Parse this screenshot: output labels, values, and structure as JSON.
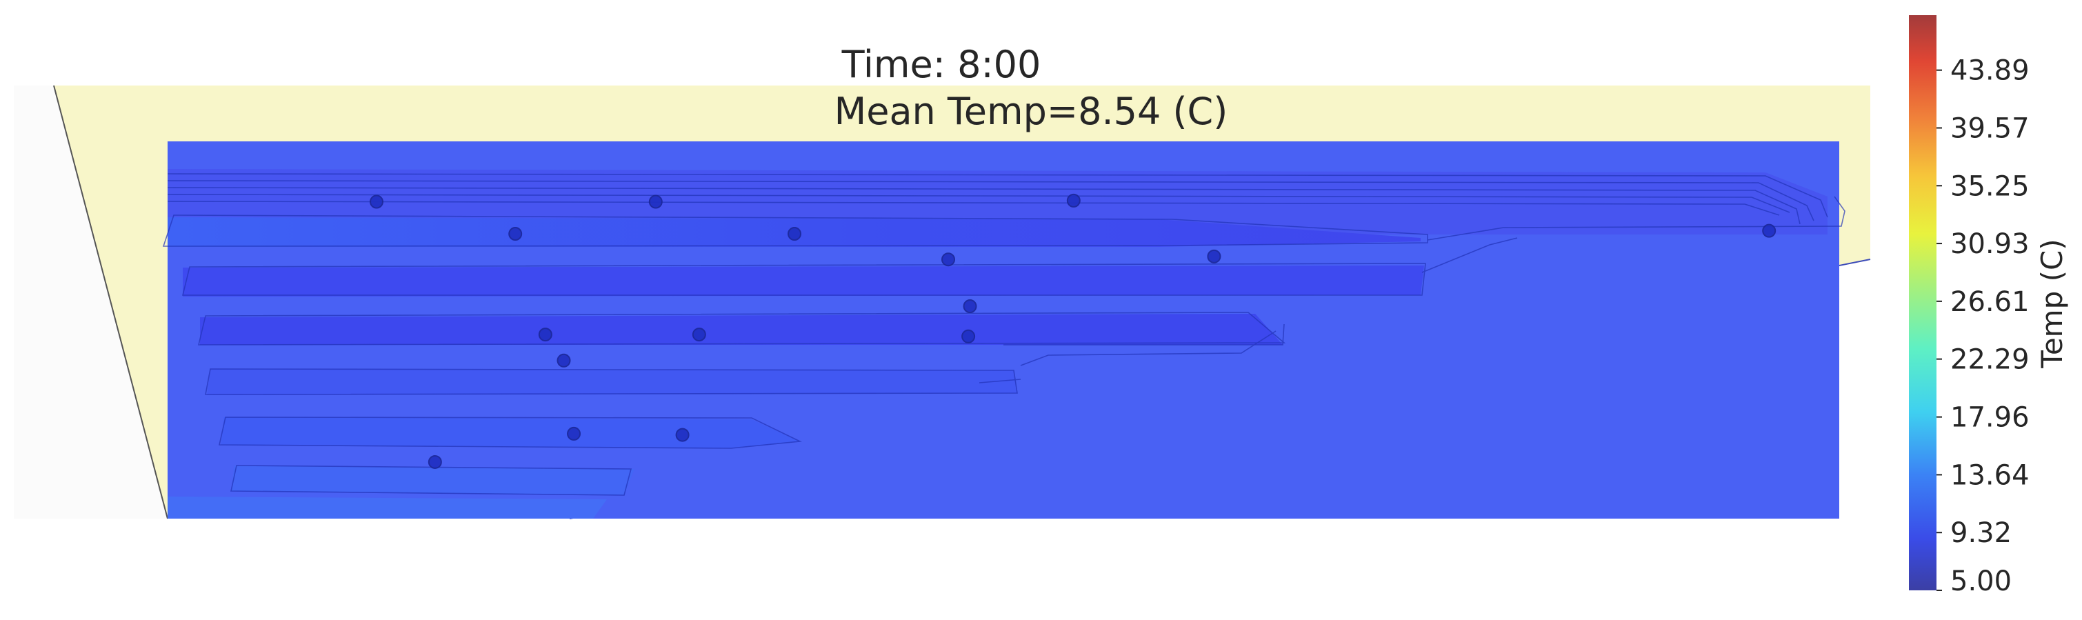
{
  "chart_data": {
    "type": "heatmap",
    "title_line1": "Time: 8:00",
    "title_line2": "Mean Temp=8.54 (C)",
    "colorbar": {
      "label": "Temp (C)",
      "min": 5.0,
      "max": 48.0,
      "ticks": [
        "5.00",
        "9.32",
        "13.64",
        "17.96",
        "22.29",
        "26.61",
        "30.93",
        "35.25",
        "39.57",
        "43.89"
      ],
      "tick_values": [
        5.0,
        9.32,
        13.64,
        17.96,
        22.29,
        26.61,
        30.93,
        35.25,
        39.57,
        43.89
      ],
      "colormap": "jet"
    },
    "field_mean_temp": 8.54,
    "sensors": [
      {
        "x": 0.125,
        "y": 0.84
      },
      {
        "x": 0.292,
        "y": 0.84
      },
      {
        "x": 0.542,
        "y": 0.843
      },
      {
        "x": 0.208,
        "y": 0.755
      },
      {
        "x": 0.375,
        "y": 0.755
      },
      {
        "x": 0.467,
        "y": 0.687
      },
      {
        "x": 0.626,
        "y": 0.695
      },
      {
        "x": 0.958,
        "y": 0.763
      },
      {
        "x": 0.48,
        "y": 0.563
      },
      {
        "x": 0.226,
        "y": 0.488
      },
      {
        "x": 0.318,
        "y": 0.488
      },
      {
        "x": 0.479,
        "y": 0.483
      },
      {
        "x": 0.237,
        "y": 0.419
      },
      {
        "x": 0.243,
        "y": 0.225
      },
      {
        "x": 0.308,
        "y": 0.222
      },
      {
        "x": 0.16,
        "y": 0.15
      }
    ]
  },
  "colors": {
    "background_region": "#f8f6c9",
    "field_base": "#4961f4",
    "field_band": "#3d4ff0",
    "field_band_light": "#3f63f6",
    "sensor_fill": "#1f2fc2",
    "contour_line": "#2233b8"
  }
}
